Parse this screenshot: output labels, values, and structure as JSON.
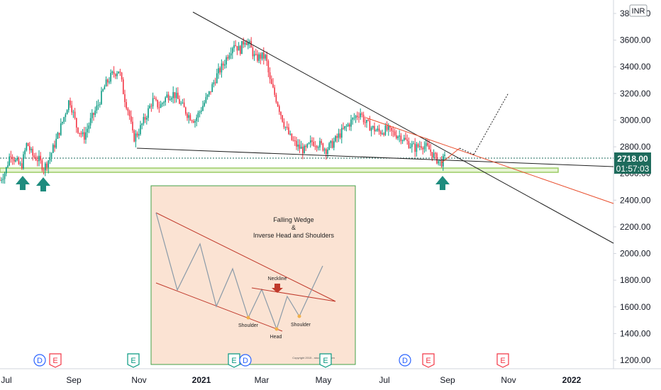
{
  "chart_data": {
    "type": "candlestick",
    "currency_label": "INR",
    "price_scale": {
      "ticks": [
        "3800.00",
        "3600.00",
        "3400.00",
        "3200.00",
        "3000.00",
        "2800.00",
        "2600.00",
        "2400.00",
        "2200.00",
        "2000.00",
        "1800.00",
        "1600.00",
        "1400.00",
        "1200.00"
      ],
      "ylim": [
        1150,
        3870
      ]
    },
    "current_price": "2718.00",
    "countdown": "01:57:03",
    "time_labels": [
      "Jul",
      "Sep",
      "Nov",
      "2021",
      "Mar",
      "May",
      "Jul",
      "Sep",
      "Nov",
      "2022"
    ],
    "series_path": [
      [
        0,
        2550
      ],
      [
        8,
        2620
      ],
      [
        15,
        2760
      ],
      [
        22,
        2690
      ],
      [
        30,
        2650
      ],
      [
        38,
        2830
      ],
      [
        45,
        2740
      ],
      [
        55,
        2700
      ],
      [
        62,
        2640
      ],
      [
        70,
        2720
      ],
      [
        80,
        2860
      ],
      [
        90,
        3020
      ],
      [
        98,
        3160
      ],
      [
        108,
        2950
      ],
      [
        118,
        2870
      ],
      [
        128,
        3000
      ],
      [
        138,
        3110
      ],
      [
        148,
        3260
      ],
      [
        158,
        3340
      ],
      [
        168,
        3380
      ],
      [
        175,
        3180
      ],
      [
        182,
        3050
      ],
      [
        188,
        2860
      ],
      [
        195,
        2910
      ],
      [
        205,
        3020
      ],
      [
        215,
        3150
      ],
      [
        225,
        3100
      ],
      [
        235,
        3180
      ],
      [
        245,
        3200
      ],
      [
        255,
        3120
      ],
      [
        265,
        3040
      ],
      [
        275,
        3000
      ],
      [
        285,
        3100
      ],
      [
        295,
        3200
      ],
      [
        305,
        3330
      ],
      [
        315,
        3420
      ],
      [
        322,
        3500
      ],
      [
        330,
        3580
      ],
      [
        338,
        3520
      ],
      [
        345,
        3610
      ],
      [
        352,
        3560
      ],
      [
        360,
        3460
      ],
      [
        368,
        3480
      ],
      [
        375,
        3470
      ],
      [
        380,
        3300
      ],
      [
        390,
        3150
      ],
      [
        400,
        2980
      ],
      [
        410,
        2860
      ],
      [
        420,
        2800
      ],
      [
        430,
        2770
      ],
      [
        440,
        2840
      ],
      [
        450,
        2820
      ],
      [
        460,
        2780
      ],
      [
        470,
        2830
      ],
      [
        480,
        2900
      ],
      [
        490,
        2960
      ],
      [
        500,
        3020
      ],
      [
        508,
        3060
      ],
      [
        515,
        2980
      ],
      [
        525,
        2940
      ],
      [
        535,
        2910
      ],
      [
        545,
        2930
      ],
      [
        555,
        2900
      ],
      [
        565,
        2880
      ],
      [
        575,
        2830
      ],
      [
        585,
        2790
      ],
      [
        595,
        2820
      ],
      [
        605,
        2780
      ],
      [
        615,
        2710
      ],
      [
        622,
        2680
      ],
      [
        628,
        2720
      ]
    ],
    "annotations": {
      "support_zone": [
        2650,
        2680
      ],
      "neckline_label": "Neckline"
    }
  },
  "events": [
    {
      "letter": "D",
      "color": "#2962ff"
    },
    {
      "letter": "E",
      "color": "#f23645"
    },
    {
      "letter": "E",
      "color": "#089981"
    },
    {
      "letter": "E",
      "color": "#089981"
    },
    {
      "letter": "D",
      "color": "#2962ff"
    },
    {
      "letter": "E",
      "color": "#089981"
    },
    {
      "letter": "D",
      "color": "#2962ff"
    },
    {
      "letter": "E",
      "color": "#f23645"
    },
    {
      "letter": "E",
      "color": "#f23645"
    }
  ],
  "inset": {
    "title_line1": "Falling Wedge",
    "title_line2": "&",
    "title_line3": "Inverse Head and Shoulders",
    "neckline": "Neckline",
    "shoulder_left": "Shoulder",
    "head": "Head",
    "shoulder_right": "Shoulder",
    "copyright": "Copyright 2015 - stockcharts.com"
  },
  "colors": {
    "up": "#089981",
    "down": "#f23645",
    "trendline": "#222222",
    "orange_line": "#e84d2c",
    "support": "#9ccc65",
    "support_fill": "#e8f5d6",
    "price_tag": "#1e6b5c",
    "inset_bg": "#fbe3d3",
    "inset_border": "#43a047"
  }
}
